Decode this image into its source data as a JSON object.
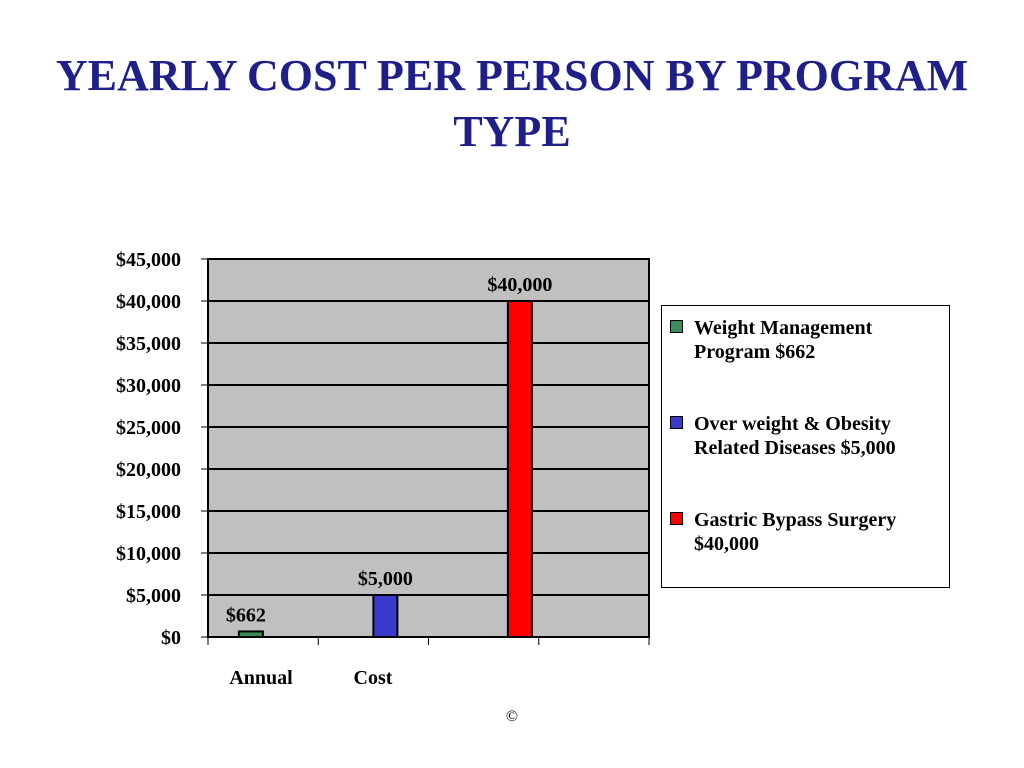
{
  "title": "YEARLY COST PER PERSON BY PROGRAM TYPE",
  "copyright": "©",
  "chart_data": {
    "type": "bar",
    "title": "YEARLY COST PER PERSON BY PROGRAM TYPE",
    "ylim": [
      0,
      45000
    ],
    "y_ticks": [
      "$0",
      "$5,000",
      "$10,000",
      "$15,000",
      "$20,000",
      "$25,000",
      "$30,000",
      "$35,000",
      "$40,000",
      "$45,000"
    ],
    "x_tick_labels": [
      "Annual",
      "Cost"
    ],
    "grid": true,
    "legend_position": "right",
    "plot_background": "#c0c0c0",
    "series": [
      {
        "name": "Weight Management Program $662",
        "value": 662,
        "label": "$662",
        "color": "#3a8a5a"
      },
      {
        "name": "Over weight & Obesity Related Diseases $5,000",
        "value": 5000,
        "label": "$5,000",
        "color": "#3a3acc"
      },
      {
        "name": "Gastric Bypass Surgery $40,000",
        "value": 40000,
        "label": "$40,000",
        "color": "#ff0000"
      }
    ]
  }
}
